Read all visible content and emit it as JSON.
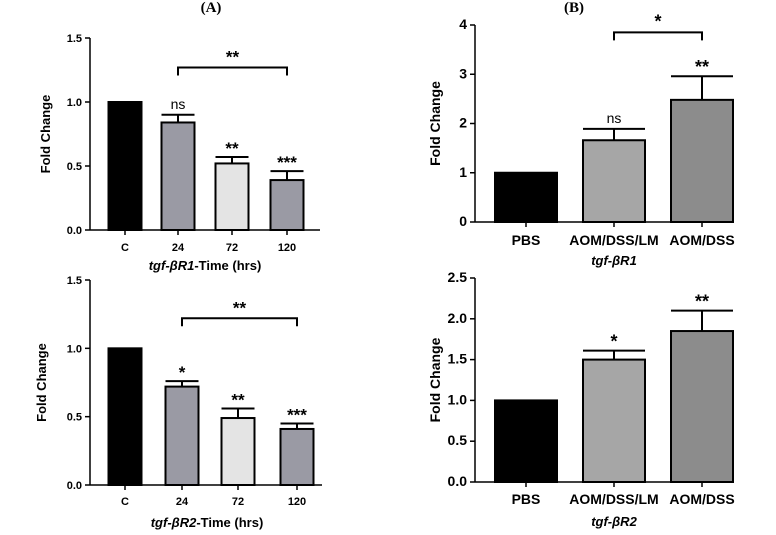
{
  "panel_labels": {
    "a": "(A)",
    "b": "(B)"
  },
  "chart_data": [
    {
      "id": "A-top",
      "type": "bar",
      "title": "",
      "xlabel_prefix": "tgf-βR1",
      "xlabel_suffix": "-Time (hrs)",
      "ylabel": "Fold Change",
      "ylim": [
        0,
        1.5
      ],
      "yticks": [
        "0.0",
        "0.5",
        "1.0",
        "1.5"
      ],
      "categories": [
        "C",
        "24",
        "72",
        "120"
      ],
      "values": [
        1.0,
        0.84,
        0.52,
        0.39
      ],
      "errors": [
        0,
        0.06,
        0.05,
        0.07
      ],
      "colors": [
        "#000000",
        "#9a9aa4",
        "#e4e4e4",
        "#9a9aa4"
      ],
      "annotations": [
        "",
        "ns",
        "**",
        "***"
      ],
      "bracket": {
        "from": "24",
        "to": "120",
        "y": 1.27,
        "label": "**"
      }
    },
    {
      "id": "A-bottom",
      "type": "bar",
      "title": "",
      "xlabel_prefix": "tgf-βR2",
      "xlabel_suffix": "-Time (hrs)",
      "ylabel": "Fold Change",
      "ylim": [
        0,
        1.5
      ],
      "yticks": [
        "0.0",
        "0.5",
        "1.0",
        "1.5"
      ],
      "categories": [
        "C",
        "24",
        "72",
        "120"
      ],
      "values": [
        1.0,
        0.72,
        0.49,
        0.41
      ],
      "errors": [
        0,
        0.04,
        0.07,
        0.04
      ],
      "colors": [
        "#000000",
        "#9a9aa4",
        "#e4e4e4",
        "#9a9aa4"
      ],
      "annotations": [
        "",
        "*",
        "**",
        "***"
      ],
      "bracket": {
        "from": "24",
        "to": "120",
        "y": 1.22,
        "label": "**"
      }
    },
    {
      "id": "B-top",
      "type": "bar",
      "title": "",
      "xlabel_prefix": "tgf-βR1",
      "xlabel_suffix": "",
      "ylabel": "Fold Change",
      "ylim": [
        0,
        4
      ],
      "yticks": [
        "0",
        "1",
        "2",
        "3",
        "4"
      ],
      "categories": [
        "PBS",
        "AOM/DSS/LM",
        "AOM/DSS"
      ],
      "values": [
        1.0,
        1.66,
        2.48
      ],
      "errors": [
        0,
        0.23,
        0.48
      ],
      "colors": [
        "#000000",
        "#a6a6a6",
        "#8c8c8c"
      ],
      "annotations": [
        "",
        "ns",
        "**"
      ],
      "bracket": {
        "from": "AOM/DSS/LM",
        "to": "AOM/DSS",
        "y": 3.85,
        "label": "*"
      }
    },
    {
      "id": "B-bottom",
      "type": "bar",
      "title": "",
      "xlabel_prefix": "tgf-βR2",
      "xlabel_suffix": "",
      "ylabel": "Fold Change",
      "ylim": [
        0,
        2.5
      ],
      "yticks": [
        "0.0",
        "0.5",
        "1.0",
        "1.5",
        "2.0",
        "2.5"
      ],
      "categories": [
        "PBS",
        "AOM/DSS/LM",
        "AOM/DSS"
      ],
      "values": [
        1.0,
        1.5,
        1.85
      ],
      "errors": [
        0,
        0.11,
        0.25
      ],
      "colors": [
        "#000000",
        "#a6a6a6",
        "#8c8c8c"
      ],
      "annotations": [
        "",
        "*",
        "**"
      ],
      "bracket": null
    }
  ]
}
